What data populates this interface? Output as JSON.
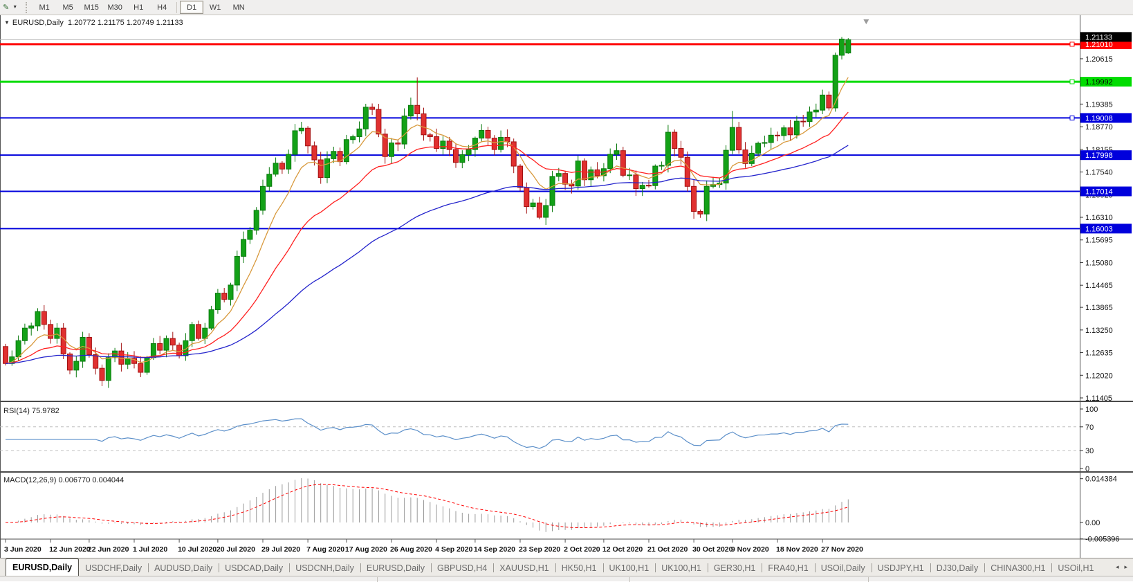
{
  "toolbar": {
    "timeframes": [
      {
        "label": "M1",
        "active": false
      },
      {
        "label": "M5",
        "active": false
      },
      {
        "label": "M15",
        "active": false
      },
      {
        "label": "M30",
        "active": false
      },
      {
        "label": "H1",
        "active": false
      },
      {
        "label": "H4",
        "active": false
      },
      {
        "label": "D1",
        "active": true
      },
      {
        "label": "W1",
        "active": false
      },
      {
        "label": "MN",
        "active": false
      }
    ]
  },
  "icons": {
    "chart_tool": "✎",
    "dropdown": "▼",
    "header_marker": "▼",
    "tab_left": "◂",
    "tab_right": "▸"
  },
  "chart": {
    "header_symbol": "EURUSD,Daily",
    "header_values": "1.20772 1.21175 1.20749 1.21133"
  },
  "indicators": {
    "rsi_label": "RSI(14) 75.9782",
    "macd_label": "MACD(12,26,9) 0.006770 0.004044"
  },
  "price_axis": {
    "ticks": [
      1.21215,
      1.20615,
      1.2,
      1.19385,
      1.1877,
      1.18155,
      1.1754,
      1.16925,
      1.1631,
      1.15695,
      1.1508,
      1.14465,
      1.13865,
      1.1325,
      1.12635,
      1.1202,
      1.11405
    ],
    "current_price": {
      "price": 1.21133,
      "badge_bg": "#000000",
      "badge_text": "#FFFFFF"
    }
  },
  "levels": [
    {
      "price": 1.2101,
      "color": "#FF0000",
      "text_color": "#FFFFFF",
      "width": 3,
      "handle": true
    },
    {
      "price": 1.19992,
      "color": "#00DC00",
      "text_color": "#000000",
      "width": 3,
      "handle": true
    },
    {
      "price": 1.19008,
      "color": "#0000DC",
      "text_color": "#FFFFFF",
      "width": 2,
      "handle": true
    },
    {
      "price": 1.17998,
      "color": "#0000DC",
      "text_color": "#FFFFFF",
      "width": 2,
      "handle": false
    },
    {
      "price": 1.17014,
      "color": "#0000DC",
      "text_color": "#FFFFFF",
      "width": 2,
      "handle": false
    },
    {
      "price": 1.16003,
      "color": "#0000DC",
      "text_color": "#FFFFFF",
      "width": 2,
      "handle": false
    }
  ],
  "rsi_axis": [
    100,
    70,
    30,
    0
  ],
  "macd_axis": [
    {
      "label": "0.014384",
      "value": 0.014384
    },
    {
      "label": "0.00",
      "value": 0
    },
    {
      "label": "-0.005396",
      "value": -0.005396
    }
  ],
  "dates": [
    {
      "label": "3 Jun 2020",
      "bar": 0
    },
    {
      "label": "12 Jun 2020",
      "bar": 7
    },
    {
      "label": "22 Jun 2020",
      "bar": 13
    },
    {
      "label": "1 Jul 2020",
      "bar": 20
    },
    {
      "label": "10 Jul 2020",
      "bar": 27
    },
    {
      "label": "20 Jul 2020",
      "bar": 33
    },
    {
      "label": "29 Jul 2020",
      "bar": 40
    },
    {
      "label": "7 Aug 2020",
      "bar": 47
    },
    {
      "label": "17 Aug 2020",
      "bar": 53
    },
    {
      "label": "26 Aug 2020",
      "bar": 60
    },
    {
      "label": "4 Sep 2020",
      "bar": 67
    },
    {
      "label": "14 Sep 2020",
      "bar": 73
    },
    {
      "label": "23 Sep 2020",
      "bar": 80
    },
    {
      "label": "2 Oct 2020",
      "bar": 87
    },
    {
      "label": "12 Oct 2020",
      "bar": 93
    },
    {
      "label": "21 Oct 2020",
      "bar": 100
    },
    {
      "label": "30 Oct 2020",
      "bar": 107
    },
    {
      "label": "9 Nov 2020",
      "bar": 113
    },
    {
      "label": "18 Nov 2020",
      "bar": 120
    },
    {
      "label": "27 Nov 2020",
      "bar": 127
    }
  ],
  "chart_data": {
    "type": "candlestick",
    "symbol": "EURUSD",
    "timeframe": "Daily",
    "ohlc_header": {
      "open": 1.20772,
      "high": 1.21175,
      "low": 1.20749,
      "close": 1.21133
    },
    "first_open": 1.128,
    "closes": [
      1.1234,
      1.1252,
      1.1296,
      1.133,
      1.1336,
      1.1375,
      1.134,
      1.1302,
      1.133,
      1.126,
      1.1216,
      1.124,
      1.1305,
      1.1258,
      1.1221,
      1.1188,
      1.125,
      1.1268,
      1.1232,
      1.1248,
      1.1234,
      1.121,
      1.125,
      1.1288,
      1.127,
      1.1302,
      1.1284,
      1.1255,
      1.1296,
      1.134,
      1.1302,
      1.133,
      1.138,
      1.1425,
      1.1408,
      1.1447,
      1.1525,
      1.1571,
      1.1596,
      1.165,
      1.1715,
      1.1748,
      1.1778,
      1.1762,
      1.1802,
      1.1866,
      1.1873,
      1.1825,
      1.1787,
      1.1739,
      1.179,
      1.181,
      1.1782,
      1.1842,
      1.185,
      1.1871,
      1.193,
      1.1924,
      1.1857,
      1.1796,
      1.1833,
      1.183,
      1.1906,
      1.1935,
      1.1912,
      1.1855,
      1.185,
      1.1818,
      1.1838,
      1.1815,
      1.178,
      1.1801,
      1.1815,
      1.1846,
      1.1867,
      1.1846,
      1.1815,
      1.1848,
      1.1836,
      1.177,
      1.1712,
      1.166,
      1.167,
      1.1631,
      1.1663,
      1.1742,
      1.175,
      1.1721,
      1.1716,
      1.1784,
      1.1733,
      1.176,
      1.1744,
      1.1763,
      1.1802,
      1.1812,
      1.1745,
      1.1746,
      1.1709,
      1.1718,
      1.1717,
      1.177,
      1.1772,
      1.1862,
      1.1818,
      1.1794,
      1.1715,
      1.1647,
      1.164,
      1.1715,
      1.172,
      1.1724,
      1.1813,
      1.1875,
      1.1814,
      1.1777,
      1.1805,
      1.1832,
      1.1834,
      1.1854,
      1.1853,
      1.1874,
      1.1855,
      1.1892,
      1.1891,
      1.1917,
      1.1922,
      1.1963,
      1.1928,
      1.2071,
      1.2115,
      1.21133
    ],
    "wick_overrides": [
      {
        "i": 5,
        "high": 1.1384
      },
      {
        "i": 64,
        "high": 1.2011
      },
      {
        "i": 113,
        "high": 1.192
      }
    ],
    "last_candle": {
      "open": 1.20772,
      "high": 1.21175,
      "low": 1.20749,
      "close": 1.21133
    },
    "moving_averages": [
      {
        "name": "fast-ma",
        "type": "ema",
        "period": 8,
        "color": "#D8993C"
      },
      {
        "name": "medium-ma",
        "type": "ema",
        "period": 21,
        "color": "#FF2020"
      },
      {
        "name": "slow-ma",
        "type": "ema",
        "period": 55,
        "color": "#2424CC"
      }
    ],
    "rsi": {
      "period": 14,
      "value": 75.9782,
      "levels": [
        70,
        30
      ]
    },
    "macd": {
      "fast": 12,
      "slow": 26,
      "signal": 9,
      "value": 0.00677,
      "signal_value": 0.004044
    }
  },
  "colors": {
    "bull": "#13A117",
    "bull_stroke": "#0A7A0E",
    "bear": "#E03030",
    "bear_stroke": "#A31212",
    "rsi_line": "#5B8FC9",
    "macd_hist": "#9A9A9A",
    "macd_signal": "#FF0000",
    "dash_level": "#BDBDBD",
    "current_price_line": "#B8B8B8",
    "axis_line": "#4A4A4A",
    "shift_marker": "#9A9A9A"
  },
  "tabs": [
    {
      "label": "EURUSD,Daily",
      "active": true
    },
    {
      "label": "USDCHF,Daily",
      "active": false
    },
    {
      "label": "AUDUSD,Daily",
      "active": false
    },
    {
      "label": "USDCAD,Daily",
      "active": false
    },
    {
      "label": "USDCNH,Daily",
      "active": false
    },
    {
      "label": "EURUSD,Daily",
      "active": false
    },
    {
      "label": "GBPUSD,H4",
      "active": false
    },
    {
      "label": "XAUUSD,H1",
      "active": false
    },
    {
      "label": "HK50,H1",
      "active": false
    },
    {
      "label": "UK100,H1",
      "active": false
    },
    {
      "label": "UK100,H1",
      "active": false
    },
    {
      "label": "GER30,H1",
      "active": false
    },
    {
      "label": "FRA40,H1",
      "active": false
    },
    {
      "label": "USOil,Daily",
      "active": false
    },
    {
      "label": "USDJPY,H1",
      "active": false
    },
    {
      "label": "DJ30,Daily",
      "active": false
    },
    {
      "label": "CHINA300,H1",
      "active": false
    },
    {
      "label": "USOil,H1",
      "active": false
    }
  ]
}
